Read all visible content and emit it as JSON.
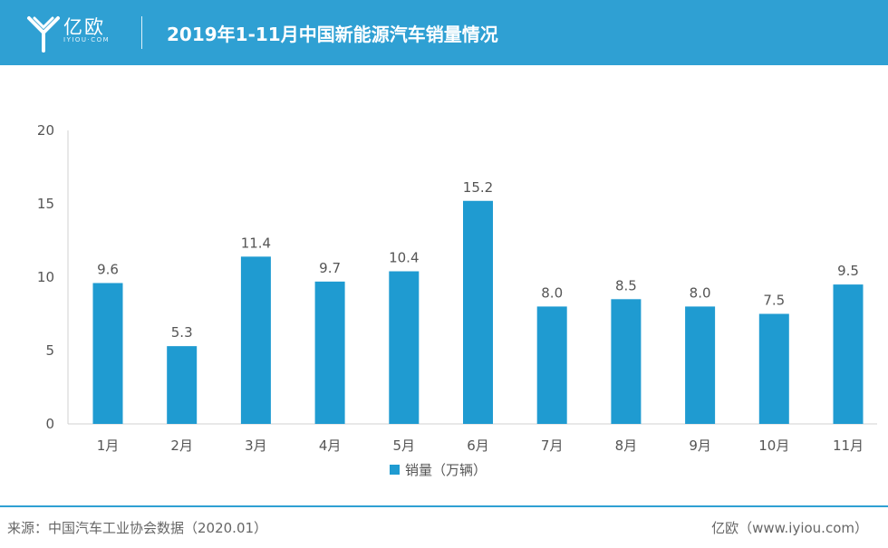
{
  "header": {
    "logo_text": "亿欧",
    "logo_subtext": "IYIOU·COM",
    "title": "2019年1-11月中国新能源汽车销量情况"
  },
  "chart_data": {
    "type": "bar",
    "title": "2019年1-11月中国新能源汽车销量情况",
    "categories": [
      "1月",
      "2月",
      "3月",
      "4月",
      "5月",
      "6月",
      "7月",
      "8月",
      "9月",
      "10月",
      "11月"
    ],
    "series": [
      {
        "name": "销量（万辆）",
        "values": [
          9.6,
          5.3,
          11.4,
          9.7,
          10.4,
          15.2,
          8.0,
          8.5,
          8.0,
          7.5,
          9.5
        ],
        "color": "#1f9bd1"
      }
    ],
    "value_labels": [
      "9.6",
      "5.3",
      "11.4",
      "9.7",
      "10.4",
      "15.2",
      "8.0",
      "8.5",
      "8.0",
      "7.5",
      "9.5"
    ],
    "yticks": [
      "0",
      "5",
      "10",
      "15",
      "20"
    ],
    "ylim": [
      0,
      20
    ],
    "xlabel": "",
    "ylabel": "",
    "grid": false,
    "legend_position": "bottom"
  },
  "footer": {
    "source": "来源：中国汽车工业协会数据（2020.01）",
    "site": "亿欧（www.iyiou.com）"
  },
  "colors": {
    "accent": "#2fa0d3",
    "bar": "#1f9bd1"
  }
}
